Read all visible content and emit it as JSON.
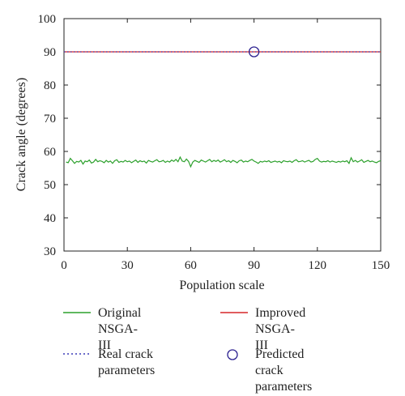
{
  "chart_data": {
    "type": "line",
    "xlabel": "Population scale",
    "ylabel": "Crack angle (degrees)",
    "xlim": [
      0,
      150
    ],
    "ylim": [
      30,
      100
    ],
    "xticks": [
      0,
      30,
      60,
      90,
      120,
      150
    ],
    "yticks": [
      30,
      40,
      50,
      60,
      70,
      80,
      90,
      100
    ],
    "grid": false,
    "legend_position": "bottom",
    "series": [
      {
        "name": "Original\nNSGA-III",
        "kind": "line",
        "color": "#2ca02c",
        "style": "solid",
        "x": [
          1,
          2,
          3,
          4,
          5,
          6,
          7,
          8,
          9,
          10,
          11,
          12,
          13,
          14,
          15,
          16,
          17,
          18,
          19,
          20,
          21,
          22,
          23,
          24,
          25,
          26,
          27,
          28,
          29,
          30,
          31,
          32,
          33,
          34,
          35,
          36,
          37,
          38,
          39,
          40,
          41,
          42,
          43,
          44,
          45,
          46,
          47,
          48,
          49,
          50,
          51,
          52,
          53,
          54,
          55,
          56,
          57,
          58,
          59,
          60,
          61,
          62,
          63,
          64,
          65,
          66,
          67,
          68,
          69,
          70,
          71,
          72,
          73,
          74,
          75,
          76,
          77,
          78,
          79,
          80,
          81,
          82,
          83,
          84,
          85,
          86,
          87,
          88,
          89,
          90,
          91,
          92,
          93,
          94,
          95,
          96,
          97,
          98,
          99,
          100,
          101,
          102,
          103,
          104,
          105,
          106,
          107,
          108,
          109,
          110,
          111,
          112,
          113,
          114,
          115,
          116,
          117,
          118,
          119,
          120,
          121,
          122,
          123,
          124,
          125,
          126,
          127,
          128,
          129,
          130,
          131,
          132,
          133,
          134,
          135,
          136,
          137,
          138,
          139,
          140,
          141,
          142,
          143,
          144,
          145,
          146,
          147,
          148,
          149,
          150
        ],
        "y": [
          56.8,
          56.6,
          57.9,
          57.2,
          56.4,
          57.0,
          56.8,
          57.3,
          56.2,
          57.1,
          56.9,
          57.4,
          56.5,
          56.8,
          57.6,
          56.9,
          57.2,
          57.0,
          56.6,
          57.3,
          56.8,
          57.1,
          56.4,
          57.2,
          57.5,
          56.7,
          57.0,
          56.8,
          57.3,
          56.9,
          57.1,
          56.6,
          57.0,
          57.4,
          56.7,
          57.2,
          56.9,
          57.1,
          56.5,
          57.3,
          57.0,
          56.8,
          57.2,
          57.5,
          56.9,
          57.0,
          57.3,
          56.7,
          57.1,
          56.8,
          57.4,
          57.0,
          57.6,
          56.9,
          58.3,
          57.1,
          56.9,
          57.7,
          57.0,
          55.4,
          56.8,
          57.3,
          57.0,
          56.7,
          57.4,
          57.1,
          56.8,
          57.2,
          57.6,
          56.9,
          57.3,
          57.0,
          57.4,
          56.8,
          57.1,
          57.5,
          56.9,
          57.2,
          56.7,
          57.3,
          57.0,
          56.6,
          57.2,
          57.4,
          56.8,
          57.1,
          56.9,
          57.3,
          57.6,
          57.1,
          56.8,
          56.4,
          57.0,
          56.8,
          57.1,
          56.9,
          57.2,
          56.7,
          56.9,
          57.1,
          56.8,
          57.0,
          56.6,
          57.2,
          57.0,
          56.9,
          57.1,
          56.7,
          57.2,
          57.5,
          56.9,
          57.0,
          57.2,
          56.8,
          57.1,
          57.3,
          56.8,
          57.0,
          57.6,
          57.9,
          57.1,
          56.8,
          57.0,
          56.9,
          57.2,
          56.8,
          57.1,
          56.9,
          56.7,
          57.0,
          56.8,
          57.1,
          56.9,
          57.2,
          56.4,
          58.1,
          56.9,
          57.3,
          56.8,
          57.1,
          57.5,
          56.7,
          57.0,
          57.3,
          56.9,
          57.1,
          56.8,
          56.6,
          57.0,
          57.2
        ]
      },
      {
        "name": "Improved\nNSGA-III",
        "kind": "line",
        "color": "#d62728",
        "style": "solid",
        "x": [
          0,
          150
        ],
        "y": [
          90,
          90
        ]
      },
      {
        "name": "Real crack\nparameters",
        "kind": "line",
        "color": "#3b3bb8",
        "style": "dotted",
        "x": [
          0,
          150
        ],
        "y": [
          90,
          90
        ]
      },
      {
        "name": "Predicted crack\nparameters",
        "kind": "marker",
        "color": "#2a1f8f",
        "style": "circle",
        "x": [
          90
        ],
        "y": [
          90
        ]
      }
    ]
  }
}
